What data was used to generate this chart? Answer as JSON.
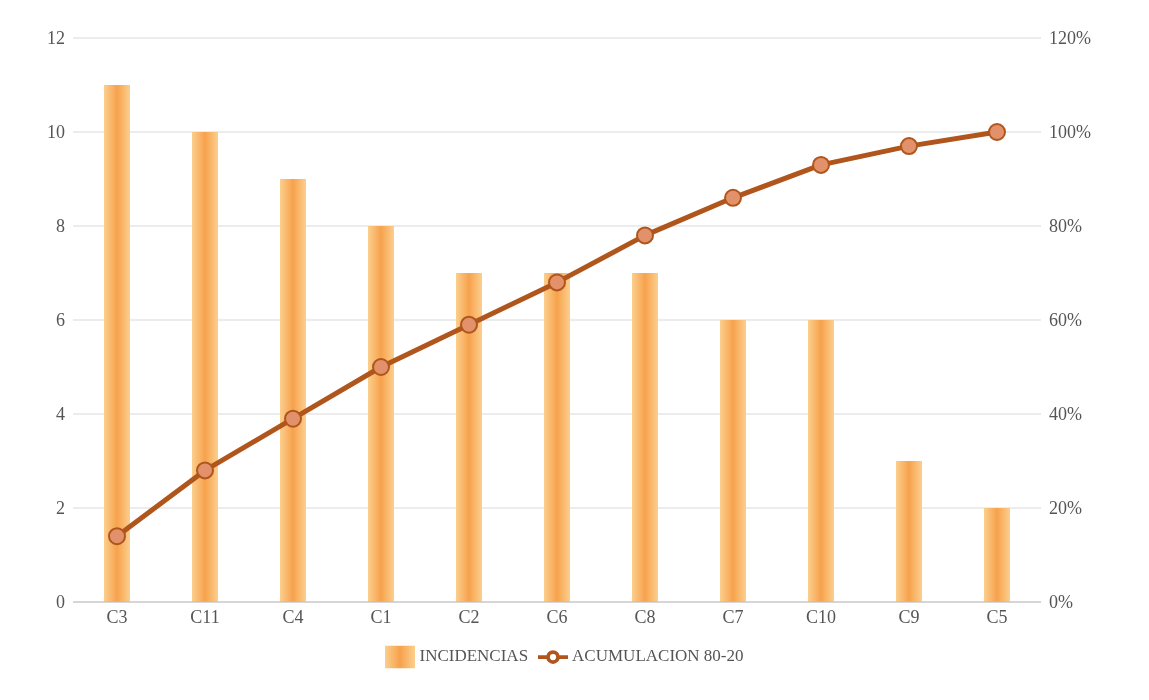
{
  "chart_data": {
    "type": "bar",
    "categories": [
      "C3",
      "C11",
      "C4",
      "C1",
      "C2",
      "C6",
      "C8",
      "C7",
      "C10",
      "C9",
      "C5"
    ],
    "series": [
      {
        "name": "INCIDENCIAS",
        "color": "#f7a24c",
        "values": [
          11,
          10,
          9,
          8,
          7,
          7,
          7,
          6,
          6,
          3,
          2
        ]
      },
      {
        "name": "ACUMULACION 80-20",
        "type": "line",
        "axis": "y2",
        "color": "#b0561c",
        "values": [
          14,
          28,
          39,
          50,
          59,
          68,
          78,
          86,
          93,
          97,
          100
        ]
      }
    ],
    "ylim": [
      0,
      12
    ],
    "yticks": [
      0,
      2,
      4,
      6,
      8,
      10,
      12
    ],
    "y2lim": [
      0,
      120
    ],
    "y2ticks": [
      {
        "value": 0,
        "label": "0%"
      },
      {
        "value": 20,
        "label": "20%"
      },
      {
        "value": 40,
        "label": "40%"
      },
      {
        "value": 60,
        "label": "60%"
      },
      {
        "value": 80,
        "label": "80%"
      },
      {
        "value": 100,
        "label": "100%"
      },
      {
        "value": 120,
        "label": "120%"
      }
    ],
    "grid": "y",
    "legend": "bottom",
    "marker": "circle",
    "line_style": "solid"
  }
}
